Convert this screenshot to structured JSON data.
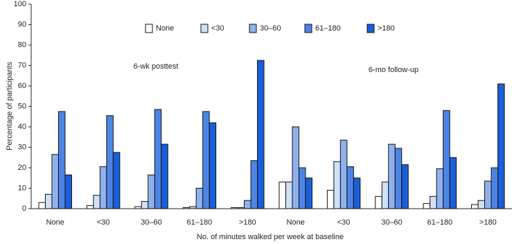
{
  "chart_data": {
    "type": "bar",
    "y_label": "Percentage of participants",
    "x_label": "No. of minutes walked per week at baseline",
    "annotations": [
      "6-wk posttest",
      "6-mo follow-up"
    ],
    "categories": [
      "None",
      "<30",
      "30–60",
      "61–180",
      ">180",
      "None",
      "<30",
      "30–60",
      "61–180",
      ">180"
    ],
    "series": [
      {
        "name": "None",
        "color": "#ffffff",
        "values": [
          3,
          1.5,
          1,
          0.5,
          0.5,
          13,
          9,
          6,
          2.5,
          2
        ]
      },
      {
        "name": "<30",
        "color": "#cfe0f7",
        "values": [
          7,
          6.5,
          3.5,
          1,
          0.5,
          13,
          23,
          13,
          6,
          4
        ]
      },
      {
        "name": "30–60",
        "color": "#8fb2ee",
        "values": [
          26.5,
          20.5,
          16.5,
          10,
          4,
          40,
          33.5,
          31.5,
          19.5,
          13.5
        ]
      },
      {
        "name": "61–180",
        "color": "#4d85e6",
        "values": [
          47.5,
          45.5,
          48.5,
          47.5,
          23.5,
          20,
          20.5,
          29.5,
          48,
          20
        ]
      },
      {
        "name": ">180",
        "color": "#1a5fd9",
        "values": [
          16.5,
          27.5,
          31.5,
          42,
          72.5,
          15,
          15,
          21.5,
          25,
          61
        ]
      }
    ],
    "ylim": [
      0,
      100
    ],
    "yticks": [
      0,
      10,
      20,
      30,
      40,
      50,
      60,
      70,
      80,
      90,
      100
    ],
    "legend": "top"
  }
}
